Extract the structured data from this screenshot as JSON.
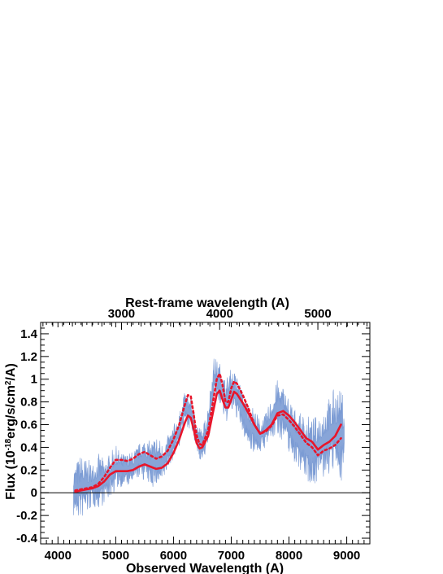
{
  "chart_data": {
    "type": "line",
    "xlabel": "Observed Wavelength (A)",
    "ylabel": "Flux (10^-18 erg/s/cm^2/A)",
    "x2label": "Rest-frame wavelength (A)",
    "xlim": [
      3700,
      9400
    ],
    "ylim": [
      -0.45,
      1.5
    ],
    "xticks": [
      4000,
      5000,
      6000,
      7000,
      8000,
      9000
    ],
    "yticks": [
      -0.4,
      -0.2,
      0,
      0.2,
      0.4,
      0.6,
      0.8,
      1,
      1.2,
      1.4
    ],
    "x2ticks": [
      3000,
      4000,
      5000
    ],
    "x2_to_x_factor": 1.7,
    "zero_line": true,
    "colors": {
      "spectrum": "#7b9bd4",
      "model": "#e8152a",
      "zero": "#000000"
    },
    "series": [
      {
        "style": "filled-noisy",
        "x_range": [
          4270,
          8960
        ],
        "x": [
          4300,
          4400,
          4500,
          4600,
          4700,
          4800,
          4900,
          5000,
          5100,
          5200,
          5300,
          5400,
          5500,
          5600,
          5700,
          5800,
          5900,
          6000,
          6100,
          6200,
          6300,
          6400,
          6500,
          6600,
          6700,
          6800,
          6900,
          7000,
          7100,
          7200,
          7300,
          7400,
          7500,
          7600,
          7700,
          7800,
          7900,
          8000,
          8100,
          8200,
          8300,
          8400,
          8500,
          8600,
          8700,
          8800,
          8900
        ],
        "y": [
          0.02,
          0.05,
          0.05,
          0.07,
          0.1,
          0.1,
          0.15,
          0.22,
          0.2,
          0.2,
          0.22,
          0.28,
          0.3,
          0.25,
          0.28,
          0.25,
          0.35,
          0.45,
          0.55,
          0.75,
          0.7,
          0.5,
          0.4,
          0.6,
          1.0,
          0.95,
          0.8,
          0.9,
          0.85,
          0.7,
          0.6,
          0.55,
          0.5,
          0.55,
          0.65,
          0.75,
          0.7,
          0.6,
          0.5,
          0.45,
          0.4,
          0.35,
          0.4,
          0.45,
          0.5,
          0.55,
          0.5
        ],
        "noise": [
          0.25,
          0.3,
          0.25,
          0.2,
          0.25,
          0.2,
          0.2,
          0.2,
          0.15,
          0.15,
          0.15,
          0.15,
          0.2,
          0.2,
          0.25,
          0.2,
          0.15,
          0.15,
          0.15,
          0.15,
          0.15,
          0.15,
          0.15,
          0.2,
          0.2,
          0.2,
          0.2,
          0.2,
          0.2,
          0.2,
          0.2,
          0.2,
          0.15,
          0.15,
          0.2,
          0.25,
          0.25,
          0.25,
          0.25,
          0.25,
          0.3,
          0.3,
          0.3,
          0.35,
          0.35,
          0.4,
          0.4
        ]
      },
      {
        "style": "solid",
        "x": [
          4300,
          4400,
          4500,
          4600,
          4700,
          4800,
          4900,
          5000,
          5100,
          5200,
          5300,
          5400,
          5500,
          5600,
          5700,
          5800,
          5900,
          6000,
          6100,
          6200,
          6250,
          6300,
          6350,
          6400,
          6450,
          6500,
          6600,
          6700,
          6750,
          6800,
          6850,
          6900,
          6950,
          7000,
          7050,
          7100,
          7200,
          7300,
          7400,
          7500,
          7600,
          7700,
          7800,
          7900,
          8000,
          8100,
          8200,
          8300,
          8400,
          8500,
          8600,
          8700,
          8800,
          8900
        ],
        "y": [
          0.01,
          0.02,
          0.03,
          0.04,
          0.06,
          0.1,
          0.16,
          0.19,
          0.19,
          0.19,
          0.2,
          0.23,
          0.25,
          0.23,
          0.21,
          0.22,
          0.26,
          0.35,
          0.47,
          0.62,
          0.68,
          0.66,
          0.56,
          0.44,
          0.39,
          0.4,
          0.5,
          0.75,
          0.87,
          0.9,
          0.82,
          0.75,
          0.75,
          0.82,
          0.89,
          0.87,
          0.79,
          0.7,
          0.6,
          0.52,
          0.55,
          0.6,
          0.7,
          0.72,
          0.68,
          0.62,
          0.55,
          0.48,
          0.45,
          0.38,
          0.42,
          0.45,
          0.5,
          0.6
        ]
      },
      {
        "style": "dotted",
        "x": [
          4300,
          4400,
          4500,
          4600,
          4700,
          4800,
          4900,
          5000,
          5100,
          5200,
          5300,
          5400,
          5500,
          5600,
          5700,
          5800,
          5900,
          6000,
          6100,
          6200,
          6250,
          6300,
          6350,
          6400,
          6450,
          6500,
          6600,
          6700,
          6750,
          6800,
          6850,
          6900,
          6950,
          7000,
          7050,
          7100,
          7200,
          7300,
          7400,
          7500,
          7600,
          7700,
          7800,
          7900,
          8000,
          8100,
          8200,
          8300,
          8400,
          8500,
          8600,
          8700,
          8800,
          8900
        ],
        "y": [
          0.02,
          0.03,
          0.04,
          0.05,
          0.08,
          0.14,
          0.22,
          0.29,
          0.29,
          0.28,
          0.3,
          0.34,
          0.36,
          0.33,
          0.3,
          0.32,
          0.37,
          0.47,
          0.6,
          0.78,
          0.86,
          0.85,
          0.69,
          0.51,
          0.43,
          0.42,
          0.55,
          0.85,
          1.0,
          1.05,
          0.95,
          0.8,
          0.8,
          0.92,
          0.98,
          0.96,
          0.86,
          0.74,
          0.6,
          0.52,
          0.54,
          0.59,
          0.68,
          0.69,
          0.64,
          0.58,
          0.51,
          0.44,
          0.4,
          0.33,
          0.37,
          0.39,
          0.42,
          0.48
        ]
      }
    ]
  }
}
